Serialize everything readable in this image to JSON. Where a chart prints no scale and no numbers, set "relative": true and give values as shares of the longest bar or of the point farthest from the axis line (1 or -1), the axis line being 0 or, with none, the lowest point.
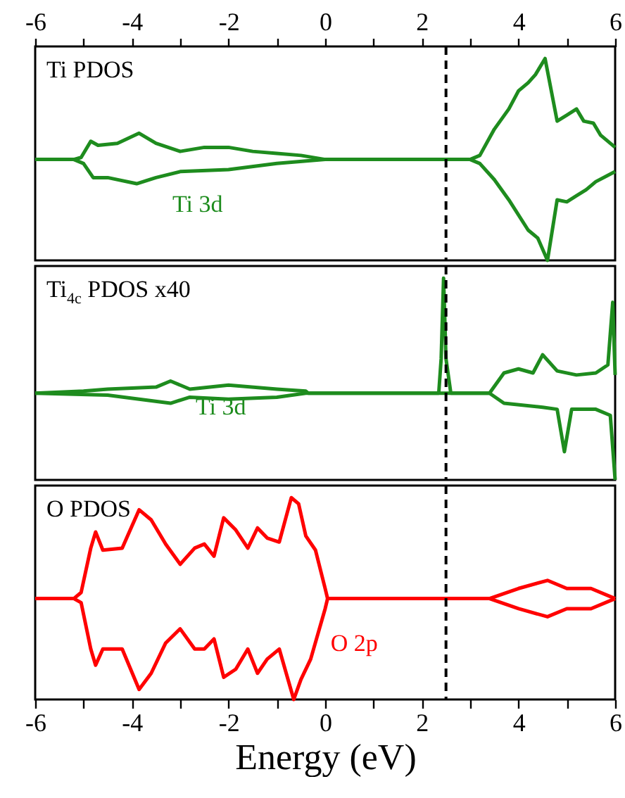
{
  "chart_data": [
    {
      "type": "line",
      "title": "Ti PDOS",
      "relative": true,
      "xlim": [
        -6,
        6
      ],
      "xticks": [
        -6,
        {
          "value": -5,
          "label": null
        },
        -4,
        {
          "value": -3,
          "label": null
        },
        -2,
        {
          "value": -1,
          "label": null
        },
        0,
        {
          "value": 1,
          "label": null
        },
        2,
        {
          "value": 3,
          "label": null
        },
        4,
        {
          "value": 5,
          "label": null
        },
        6
      ],
      "x2lim": [
        -6,
        6
      ],
      "x2ticks": [
        -6,
        {
          "value": -5,
          "label": null
        },
        -4,
        {
          "value": -3,
          "label": null
        },
        -2,
        {
          "value": -1,
          "label": null
        },
        0,
        {
          "value": 1,
          "label": null
        },
        2,
        {
          "value": 3,
          "label": null
        },
        4,
        {
          "value": 5,
          "label": null
        },
        6
      ],
      "tick_labels": false,
      "line_style": "solid",
      "marker": "none",
      "series": [
        {
          "color": "#1e8c1e",
          "x": [
            -6,
            -5.2,
            -5.05,
            -4.85,
            -4.7,
            -4.3,
            -3.85,
            -3.5,
            -3.0,
            -2.5,
            -2.0,
            -1.5,
            -1.0,
            -0.5,
            0,
            3.0,
            3.2,
            3.5,
            3.8,
            4.0,
            4.2,
            4.35,
            4.55,
            4.8,
            5.0,
            5.2,
            5.35,
            5.55,
            5.7,
            6.0
          ],
          "values": [
            0.5,
            0.5,
            0.51,
            0.59,
            0.57,
            0.58,
            0.63,
            0.58,
            0.54,
            0.56,
            0.56,
            0.54,
            0.53,
            0.52,
            0.5,
            0.5,
            0.52,
            0.65,
            0.75,
            0.84,
            0.88,
            0.92,
            1,
            0.69,
            0.72,
            0.75,
            0.69,
            0.68,
            0.62,
            0.56
          ]
        },
        {
          "color": "#1e8c1e",
          "x": [
            -6,
            -5.2,
            -5.0,
            -4.8,
            -4.5,
            -3.9,
            -3.5,
            -3.0,
            -2.0,
            -1.0,
            0,
            3.0,
            3.2,
            3.5,
            3.8,
            4.2,
            4.4,
            4.6,
            4.8,
            5.0,
            5.2,
            5.4,
            5.6,
            6.0
          ],
          "values": [
            0.5,
            0.5,
            0.48,
            0.41,
            0.41,
            0.38,
            0.41,
            0.44,
            0.45,
            0.48,
            0.5,
            0.5,
            0.48,
            0.4,
            0.3,
            0.15,
            0.11,
            0,
            0.3,
            0.29,
            0.32,
            0.35,
            0.39,
            0.44
          ]
        }
      ],
      "ref_lines": [
        {
          "axis": "x",
          "value": 2.5,
          "color": "#000000",
          "line_style": "dashed"
        }
      ],
      "annotations": [
        "Ti 3d"
      ]
    },
    {
      "type": "line",
      "title": "Ti$_{4c}$ PDOS x40",
      "relative": true,
      "xlim": [
        -6,
        6
      ],
      "xticks": [
        -6,
        -4,
        -2,
        0,
        2,
        4,
        6
      ],
      "tick_labels": false,
      "line_style": "solid",
      "marker": "none",
      "series": [
        {
          "color": "#1e8c1e",
          "x": [
            -6,
            -5,
            -4.5,
            -3.5,
            -3.2,
            -2.8,
            -2,
            -1,
            -0.4,
            -0.35,
            2.35,
            2.4,
            2.45,
            2.5,
            2.6,
            3.4,
            3.7,
            4,
            4.3,
            4.5,
            4.8,
            5.2,
            5.6,
            5.85,
            5.95,
            6
          ],
          "values": [
            0.43,
            0.44,
            0.45,
            0.46,
            0.49,
            0.45,
            0.47,
            0.45,
            0.44,
            0.43,
            0.43,
            0.6,
            1,
            0.6,
            0.43,
            0.43,
            0.53,
            0.55,
            0.53,
            0.62,
            0.54,
            0.52,
            0.53,
            0.57,
            0.88,
            0.52
          ]
        },
        {
          "color": "#1e8c1e",
          "x": [
            -6,
            -4.5,
            -3.2,
            -2.8,
            -2,
            -1,
            -0.4,
            3.4,
            3.7,
            4.5,
            4.8,
            4.95,
            5.1,
            5.6,
            5.9,
            6
          ],
          "values": [
            0.43,
            0.42,
            0.38,
            0.41,
            0.4,
            0.41,
            0.43,
            0.43,
            0.38,
            0.36,
            0.35,
            0.14,
            0.35,
            0.35,
            0.32,
            0
          ]
        }
      ],
      "ref_lines": [
        {
          "axis": "x",
          "value": 2.5,
          "color": "#000000",
          "line_style": "dashed"
        }
      ],
      "annotations": [
        "Ti 3d"
      ]
    },
    {
      "type": "line",
      "title": "O PDOS",
      "relative": true,
      "xlim": [
        -6,
        6
      ],
      "xticks": [
        -6,
        {
          "value": -5,
          "label": null
        },
        -4,
        {
          "value": -3,
          "label": null
        },
        -2,
        {
          "value": -1,
          "label": null
        },
        0,
        {
          "value": 1,
          "label": null
        },
        2,
        {
          "value": 3,
          "label": null
        },
        4,
        {
          "value": 5,
          "label": null
        },
        6
      ],
      "tick_labels": "x",
      "xlabel": "Energy (eV)",
      "line_style": "solid",
      "marker": "none",
      "series": [
        {
          "color": "#ff0000",
          "x": [
            -6,
            -5.2,
            -5.05,
            -4.85,
            -4.75,
            -4.6,
            -4.2,
            -3.85,
            -3.6,
            -3.3,
            -3,
            -2.7,
            -2.5,
            -2.3,
            -2.1,
            -1.85,
            -1.6,
            -1.4,
            -1.2,
            -0.95,
            -0.7,
            -0.55,
            -0.4,
            -0.2,
            0,
            0.05,
            3.4,
            4,
            4.6,
            5.0,
            5.5,
            6
          ],
          "values": [
            0.5,
            0.5,
            0.53,
            0.75,
            0.83,
            0.74,
            0.75,
            0.94,
            0.89,
            0.77,
            0.67,
            0.75,
            0.77,
            0.71,
            0.9,
            0.84,
            0.75,
            0.85,
            0.8,
            0.78,
            1,
            0.97,
            0.81,
            0.74,
            0.55,
            0.5,
            0.5,
            0.55,
            0.59,
            0.55,
            0.55,
            0.5
          ]
        },
        {
          "color": "#ff0000",
          "x": [
            -6,
            -5.2,
            -5.05,
            -4.85,
            -4.75,
            -4.6,
            -4.2,
            -3.85,
            -3.6,
            -3.3,
            -3,
            -2.7,
            -2.5,
            -2.3,
            -2.1,
            -1.85,
            -1.6,
            -1.4,
            -1.2,
            -0.95,
            -0.65,
            -0.5,
            -0.3,
            0,
            0.05,
            3.4,
            4,
            4.6,
            5.0,
            5.5,
            6
          ],
          "values": [
            0.5,
            0.5,
            0.48,
            0.25,
            0.17,
            0.25,
            0.25,
            0.05,
            0.13,
            0.28,
            0.35,
            0.25,
            0.25,
            0.3,
            0.11,
            0.15,
            0.25,
            0.13,
            0.2,
            0.25,
            0,
            0.1,
            0.2,
            0.45,
            0.5,
            0.5,
            0.45,
            0.41,
            0.45,
            0.45,
            0.5
          ]
        }
      ],
      "ref_lines": [
        {
          "axis": "x",
          "value": 2.5,
          "color": "#000000",
          "line_style": "dashed"
        }
      ],
      "annotations": [
        "O 2p"
      ]
    }
  ]
}
